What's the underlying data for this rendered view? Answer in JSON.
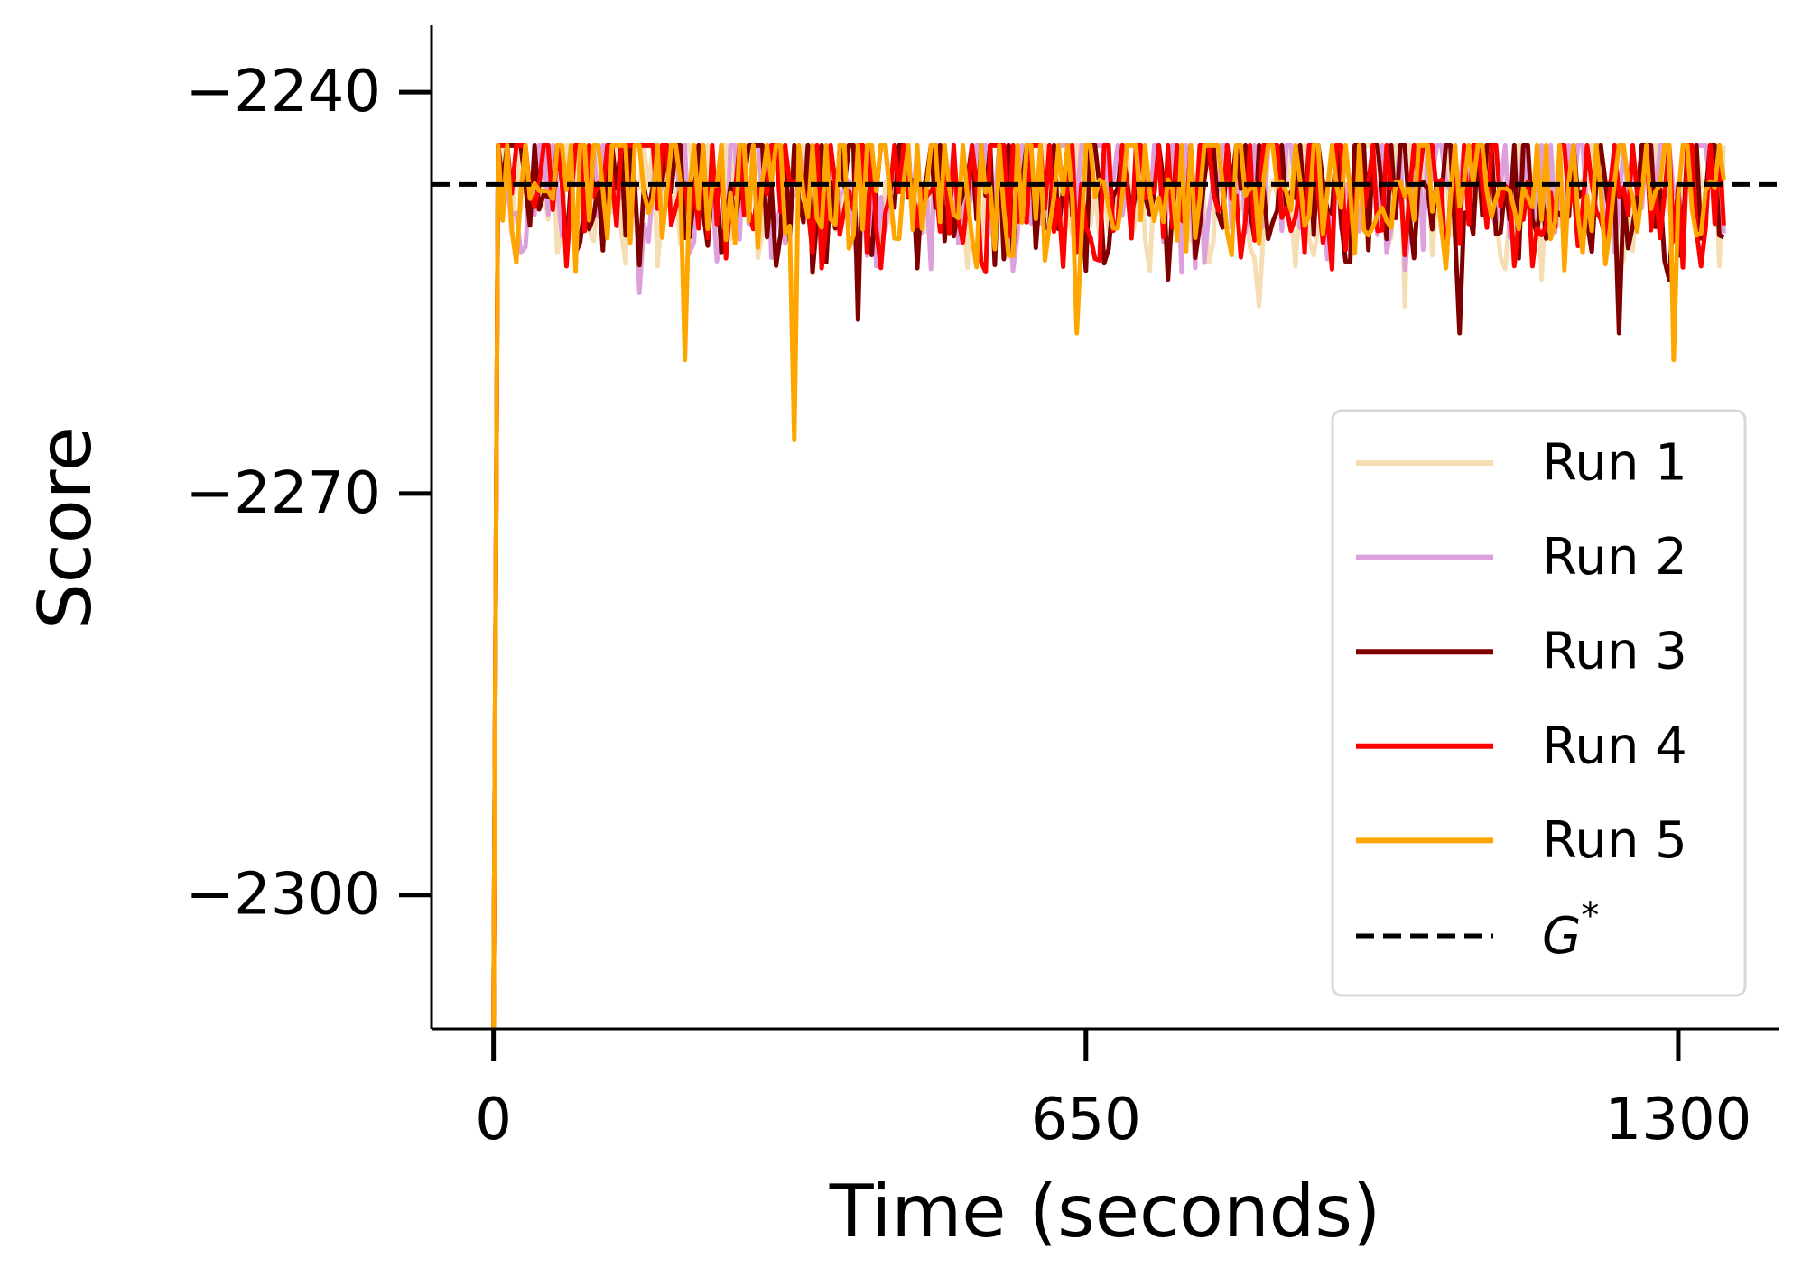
{
  "chart_data": {
    "type": "line",
    "title": "",
    "xlabel": "Time (seconds)",
    "ylabel": "Score",
    "xlim": [
      -68,
      1410
    ],
    "ylim": [
      -2310,
      -2235
    ],
    "xticks": [
      0,
      650,
      1300
    ],
    "xtick_labels": [
      "0",
      "650",
      "1300"
    ],
    "yticks": [
      -2240,
      -2270,
      -2300
    ],
    "ytick_labels": [
      "−2240",
      "−2270",
      "−2300"
    ],
    "grid": false,
    "legend_position": "center-right",
    "reference_line": {
      "name": "G*",
      "label_main": "G",
      "label_sup": "*",
      "y": -2246.9,
      "style": "dashed",
      "color": "#000000"
    },
    "sampling": {
      "x_start": 0,
      "x_step": 5,
      "x_end": 1350,
      "initial_value": -2310
    },
    "series": [
      {
        "name": "Run 1",
        "color": "#F5DEB3",
        "noise_seed": 11,
        "low_events": [
          [
            70,
            -2252
          ],
          [
            180,
            -2253
          ],
          [
            840,
            -2256
          ],
          [
            1000,
            -2256
          ],
          [
            1150,
            -2254
          ],
          [
            1345,
            -2253
          ]
        ]
      },
      {
        "name": "Run 2",
        "color": "#DDA0DD",
        "noise_seed": 23,
        "low_events": [
          [
            30,
            -2252
          ],
          [
            160,
            -2255
          ],
          [
            420,
            -2253
          ],
          [
            980,
            -2252
          ],
          [
            1230,
            -2252
          ]
        ]
      },
      {
        "name": "Run 3",
        "color": "#800000",
        "noise_seed": 37,
        "low_events": [
          [
            250,
            -2252
          ],
          [
            400,
            -2257
          ],
          [
            570,
            -2252
          ],
          [
            740,
            -2254
          ],
          [
            1060,
            -2258
          ],
          [
            1235,
            -2258
          ],
          [
            1290,
            -2254
          ]
        ]
      },
      {
        "name": "Run 4",
        "color": "#FF0000",
        "noise_seed": 53,
        "low_events": [
          [
            80,
            -2253
          ],
          [
            350,
            -2252
          ],
          [
            410,
            -2252
          ],
          [
            640,
            -2252
          ],
          [
            890,
            -2252
          ],
          [
            1140,
            -2253
          ],
          [
            1325,
            -2253
          ]
        ]
      },
      {
        "name": "Run 5",
        "color": "#FFA500",
        "noise_seed": 71,
        "low_events": [
          [
            210,
            -2260
          ],
          [
            330,
            -2266
          ],
          [
            640,
            -2258
          ],
          [
            1295,
            -2260
          ]
        ]
      }
    ]
  }
}
